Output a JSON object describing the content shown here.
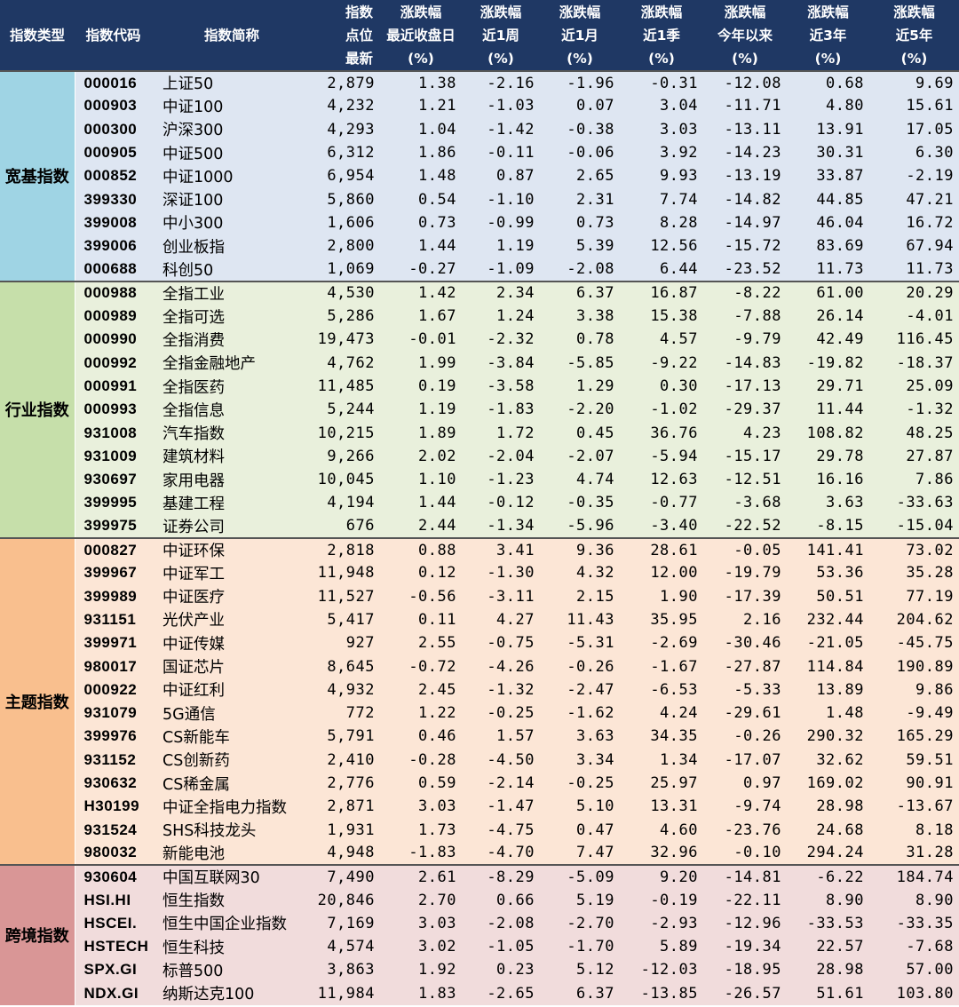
{
  "header": [
    "指数类型",
    "指数代码",
    "指数简称",
    "指数\n点位\n最新",
    "涨跌幅\n最近收盘日\n(%)",
    "涨跌幅\n近1周\n(%)",
    "涨跌幅\n近1月\n(%)",
    "涨跌幅\n近1季\n(%)",
    "涨跌幅\n今年以来\n(%)",
    "涨跌幅\n近3年\n(%)",
    "涨跌幅\n近5年\n(%)"
  ],
  "groups": [
    {
      "name": "宽基指数",
      "color": "#9fd4e4",
      "rows": [
        [
          "000016",
          "上证50",
          "2,879",
          "1.38",
          "-2.16",
          "-1.96",
          "-0.31",
          "-12.08",
          "0.68",
          "9.69"
        ],
        [
          "000903",
          "中证100",
          "4,232",
          "1.21",
          "-1.03",
          "0.07",
          "3.04",
          "-11.71",
          "4.80",
          "15.61"
        ],
        [
          "000300",
          "沪深300",
          "4,293",
          "1.04",
          "-1.42",
          "-0.38",
          "3.03",
          "-13.11",
          "13.91",
          "17.05"
        ],
        [
          "000905",
          "中证500",
          "6,312",
          "1.86",
          "-0.11",
          "-0.06",
          "3.92",
          "-14.23",
          "30.31",
          "6.30"
        ],
        [
          "000852",
          "中证1000",
          "6,954",
          "1.48",
          "0.87",
          "2.65",
          "9.93",
          "-13.19",
          "33.87",
          "-2.19"
        ],
        [
          "399330",
          "深证100",
          "5,860",
          "0.54",
          "-1.10",
          "2.31",
          "7.74",
          "-14.82",
          "44.85",
          "47.21"
        ],
        [
          "399008",
          "中小300",
          "1,606",
          "0.73",
          "-0.99",
          "0.73",
          "8.28",
          "-14.97",
          "46.04",
          "16.72"
        ],
        [
          "399006",
          "创业板指",
          "2,800",
          "1.44",
          "1.19",
          "5.39",
          "12.56",
          "-15.72",
          "83.69",
          "67.94"
        ],
        [
          "000688",
          "科创50",
          "1,069",
          "-0.27",
          "-1.09",
          "-2.08",
          "6.44",
          "-23.52",
          "11.73",
          "11.73"
        ]
      ]
    },
    {
      "name": "行业指数",
      "color": "#c6dfaa",
      "rows": [
        [
          "000988",
          "全指工业",
          "4,530",
          "1.42",
          "2.34",
          "6.37",
          "16.87",
          "-8.22",
          "61.00",
          "20.29"
        ],
        [
          "000989",
          "全指可选",
          "5,286",
          "1.67",
          "1.24",
          "3.38",
          "15.38",
          "-7.88",
          "26.14",
          "-4.01"
        ],
        [
          "000990",
          "全指消费",
          "19,473",
          "-0.01",
          "-2.32",
          "0.78",
          "4.57",
          "-9.79",
          "42.49",
          "116.45"
        ],
        [
          "000992",
          "全指金融地产",
          "4,762",
          "1.99",
          "-3.84",
          "-5.85",
          "-9.22",
          "-14.83",
          "-19.82",
          "-18.37"
        ],
        [
          "000991",
          "全指医药",
          "11,485",
          "0.19",
          "-3.58",
          "1.29",
          "0.30",
          "-17.13",
          "29.71",
          "25.09"
        ],
        [
          "000993",
          "全指信息",
          "5,244",
          "1.19",
          "-1.83",
          "-2.20",
          "-1.02",
          "-29.37",
          "11.44",
          "-1.32"
        ],
        [
          "931008",
          "汽车指数",
          "10,215",
          "1.89",
          "1.72",
          "0.45",
          "36.76",
          "4.23",
          "108.82",
          "48.25"
        ],
        [
          "931009",
          "建筑材料",
          "9,266",
          "2.02",
          "-2.04",
          "-2.07",
          "-5.94",
          "-15.17",
          "29.78",
          "27.87"
        ],
        [
          "930697",
          "家用电器",
          "10,045",
          "1.10",
          "-1.23",
          "4.74",
          "12.63",
          "-12.51",
          "16.16",
          "7.86"
        ],
        [
          "399995",
          "基建工程",
          "4,194",
          "1.44",
          "-0.12",
          "-0.35",
          "-0.77",
          "-3.68",
          "3.63",
          "-33.63"
        ],
        [
          "399975",
          "证券公司",
          "676",
          "2.44",
          "-1.34",
          "-5.96",
          "-3.40",
          "-22.52",
          "-8.15",
          "-15.04"
        ]
      ]
    },
    {
      "name": "主题指数",
      "color": "#f9bf8e",
      "rows": [
        [
          "000827",
          "中证环保",
          "2,818",
          "0.88",
          "3.41",
          "9.36",
          "28.61",
          "-0.05",
          "141.41",
          "73.02"
        ],
        [
          "399967",
          "中证军工",
          "11,948",
          "0.12",
          "-1.30",
          "4.32",
          "12.00",
          "-19.79",
          "53.36",
          "35.28"
        ],
        [
          "399989",
          "中证医疗",
          "11,527",
          "-0.56",
          "-3.11",
          "2.15",
          "1.90",
          "-17.39",
          "50.51",
          "77.19"
        ],
        [
          "931151",
          "光伏产业",
          "5,417",
          "0.11",
          "4.27",
          "11.43",
          "35.95",
          "2.16",
          "232.44",
          "204.62"
        ],
        [
          "399971",
          "中证传媒",
          "927",
          "2.55",
          "-0.75",
          "-5.31",
          "-2.69",
          "-30.46",
          "-21.05",
          "-45.75"
        ],
        [
          "980017",
          "国证芯片",
          "8,645",
          "-0.72",
          "-4.26",
          "-0.26",
          "-1.67",
          "-27.87",
          "114.84",
          "190.89"
        ],
        [
          "000922",
          "中证红利",
          "4,932",
          "2.45",
          "-1.32",
          "-2.47",
          "-6.53",
          "-5.33",
          "13.89",
          "9.86"
        ],
        [
          "931079",
          "5G通信",
          "772",
          "1.22",
          "-0.25",
          "-1.62",
          "4.24",
          "-29.61",
          "1.48",
          "-9.49"
        ],
        [
          "399976",
          "CS新能车",
          "5,791",
          "0.46",
          "1.57",
          "3.63",
          "34.35",
          "-0.26",
          "290.32",
          "165.29"
        ],
        [
          "931152",
          "CS创新药",
          "2,410",
          "-0.28",
          "-4.50",
          "3.34",
          "1.34",
          "-17.07",
          "32.62",
          "59.51"
        ],
        [
          "930632",
          "CS稀金属",
          "2,776",
          "0.59",
          "-2.14",
          "-0.25",
          "25.97",
          "0.97",
          "169.02",
          "90.91"
        ],
        [
          "H30199",
          "中证全指电力指数",
          "2,871",
          "3.03",
          "-1.47",
          "5.10",
          "13.31",
          "-9.74",
          "28.98",
          "-13.67"
        ],
        [
          "931524",
          "SHS科技龙头",
          "1,931",
          "1.73",
          "-4.75",
          "0.47",
          "4.60",
          "-23.76",
          "24.68",
          "8.18"
        ],
        [
          "980032",
          "新能电池",
          "4,948",
          "-1.83",
          "-4.70",
          "7.47",
          "32.96",
          "-0.10",
          "294.24",
          "31.28"
        ]
      ]
    },
    {
      "name": "跨境指数",
      "color": "#d99696",
      "rows": [
        [
          "930604",
          "中国互联网30",
          "7,490",
          "2.61",
          "-8.29",
          "-5.09",
          "9.20",
          "-14.81",
          "-6.22",
          "184.74"
        ],
        [
          "HSI.HI",
          "恒生指数",
          "20,846",
          "2.70",
          "0.66",
          "5.19",
          "-0.19",
          "-22.11",
          "8.90",
          "8.90"
        ],
        [
          "HSCEI.",
          "恒生中国企业指数",
          "7,169",
          "3.03",
          "-2.08",
          "-2.70",
          "-2.93",
          "-12.96",
          "-33.53",
          "-33.35"
        ],
        [
          "HSTECH",
          "恒生科技",
          "4,574",
          "3.02",
          "-1.05",
          "-1.70",
          "5.89",
          "-19.34",
          "22.57",
          "-7.68"
        ],
        [
          "SPX.GI",
          "标普500",
          "3,863",
          "1.92",
          "0.23",
          "5.12",
          "-12.03",
          "-18.95",
          "28.98",
          "57.00"
        ],
        [
          "NDX.GI",
          "纳斯达克100",
          "11,984",
          "1.83",
          "-2.65",
          "6.37",
          "-13.85",
          "-26.57",
          "51.61",
          "103.80"
        ]
      ]
    }
  ]
}
